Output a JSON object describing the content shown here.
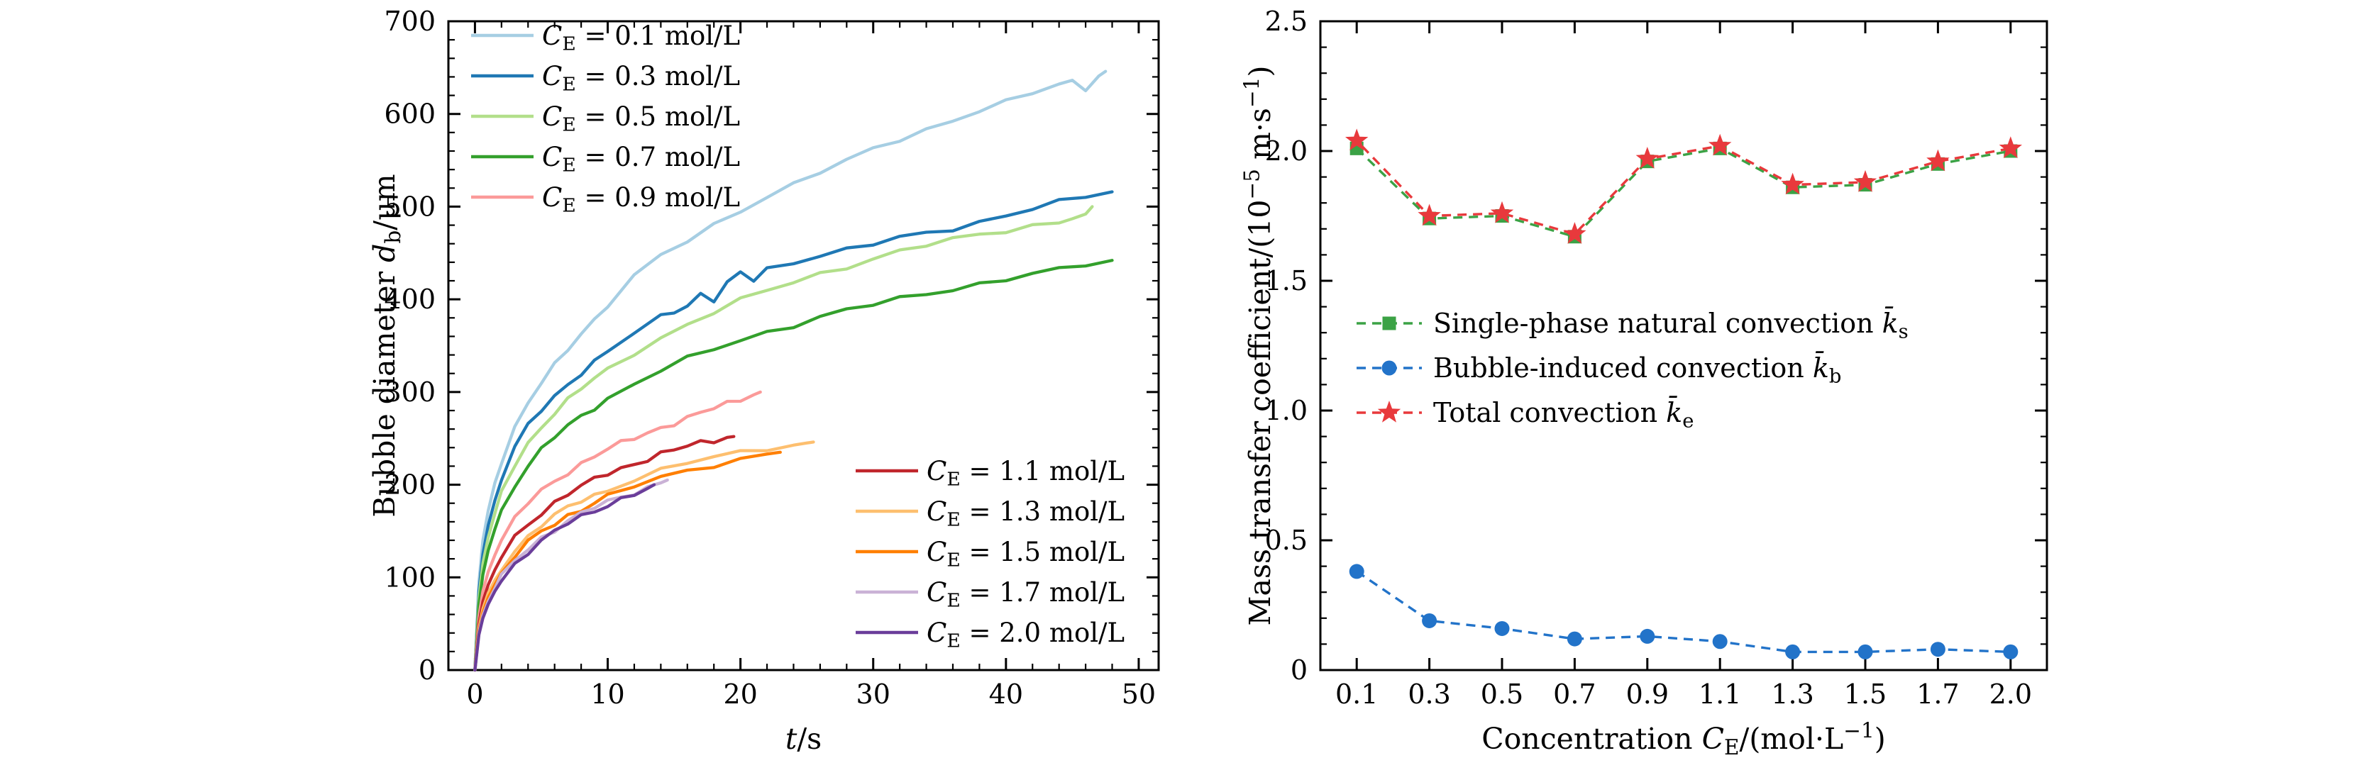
{
  "figure": {
    "background": "#ffffff",
    "text_color": "#000000"
  },
  "chart_data": [
    {
      "id": "bubble-diameter-vs-time",
      "type": "line",
      "xlabel_runs": [
        {
          "t": "t",
          "s": "i"
        },
        {
          "t": "/s"
        }
      ],
      "ylabel_runs": [
        {
          "t": "Bubble diameter "
        },
        {
          "t": "d",
          "s": "i"
        },
        {
          "t": "b",
          "s": "sub"
        },
        {
          "t": "/μm"
        }
      ],
      "xlim": [
        -2,
        51.5
      ],
      "ylim": [
        0,
        700
      ],
      "xticks": [
        0,
        10,
        20,
        30,
        40,
        50
      ],
      "yticks": [
        0,
        100,
        200,
        300,
        400,
        500,
        600,
        700
      ],
      "x_minor_step": 2,
      "y_minor_step": 20,
      "series": [
        {
          "name": "CE-0.1",
          "legend": "top",
          "color": "#a6cee3",
          "label_runs": [
            {
              "t": "C",
              "s": "i"
            },
            {
              "t": "E",
              "s": "sub"
            },
            {
              "t": " = 0.1 mol/L"
            }
          ],
          "t": [
            0,
            0.3,
            0.6,
            1,
            1.5,
            2,
            3,
            4,
            5,
            6,
            7,
            8,
            9,
            10,
            12,
            14,
            16,
            18,
            20,
            22,
            24,
            26,
            28,
            30,
            32,
            34,
            36,
            38,
            40,
            42,
            44,
            45,
            46,
            47,
            47.5
          ],
          "d": [
            0,
            95,
            140,
            172,
            202,
            226,
            262,
            289,
            309,
            328,
            346,
            363,
            379,
            395,
            425,
            447,
            462,
            479,
            496,
            512,
            525,
            538,
            549,
            561,
            572,
            583,
            594,
            605,
            613,
            622,
            631,
            634,
            628,
            641,
            646
          ]
        },
        {
          "name": "CE-0.3",
          "legend": "top",
          "color": "#1f78b4",
          "label_runs": [
            {
              "t": "C",
              "s": "i"
            },
            {
              "t": "E",
              "s": "sub"
            },
            {
              "t": " = 0.3 mol/L"
            }
          ],
          "t": [
            0,
            0.3,
            0.6,
            1,
            1.5,
            2,
            3,
            4,
            5,
            6,
            7,
            8,
            9,
            10,
            12,
            14,
            15,
            16,
            17,
            18,
            19,
            20,
            21,
            22,
            24,
            26,
            28,
            30,
            32,
            34,
            36,
            38,
            40,
            42,
            44,
            46,
            48
          ],
          "d": [
            0,
            85,
            125,
            156,
            183,
            206,
            240,
            263,
            281,
            296,
            309,
            321,
            332,
            343,
            363,
            381,
            388,
            394,
            406,
            399,
            416,
            428,
            421,
            433,
            441,
            448,
            453,
            459,
            466,
            471,
            477,
            484,
            491,
            498,
            504,
            510,
            516
          ]
        },
        {
          "name": "CE-0.5",
          "legend": "top",
          "color": "#b2df8a",
          "label_runs": [
            {
              "t": "C",
              "s": "i"
            },
            {
              "t": "E",
              "s": "sub"
            },
            {
              "t": " = 0.5 mol/L"
            }
          ],
          "t": [
            0,
            0.3,
            0.6,
            1,
            1.5,
            2,
            3,
            4,
            5,
            6,
            7,
            8,
            9,
            10,
            12,
            14,
            16,
            18,
            20,
            22,
            24,
            26,
            28,
            30,
            32,
            34,
            36,
            38,
            40,
            42,
            44,
            45,
            46,
            46.5
          ],
          "d": [
            0,
            78,
            115,
            143,
            169,
            191,
            222,
            245,
            263,
            278,
            291,
            303,
            314,
            324,
            343,
            359,
            373,
            386,
            398,
            409,
            419,
            428,
            436,
            444,
            451,
            458,
            464,
            470,
            475,
            480,
            484,
            487,
            492,
            500
          ]
        },
        {
          "name": "CE-0.7",
          "legend": "top",
          "color": "#33a02c",
          "label_runs": [
            {
              "t": "C",
              "s": "i"
            },
            {
              "t": "E",
              "s": "sub"
            },
            {
              "t": " = 0.7 mol/L"
            }
          ],
          "t": [
            0,
            0.3,
            0.6,
            1,
            1.5,
            2,
            3,
            4,
            5,
            6,
            7,
            8,
            9,
            10,
            12,
            14,
            16,
            18,
            20,
            22,
            24,
            26,
            28,
            30,
            32,
            34,
            36,
            38,
            40,
            42,
            44,
            46,
            48
          ],
          "d": [
            0,
            70,
            103,
            129,
            152,
            172,
            200,
            221,
            237,
            251,
            263,
            274,
            284,
            293,
            309,
            323,
            335,
            346,
            356,
            365,
            373,
            381,
            388,
            394,
            400,
            406,
            412,
            417,
            422,
            427,
            431,
            436,
            442
          ]
        },
        {
          "name": "CE-0.9",
          "legend": "top",
          "color": "#fb9a99",
          "label_runs": [
            {
              "t": "C",
              "s": "i"
            },
            {
              "t": "E",
              "s": "sub"
            },
            {
              "t": " = 0.9 mol/L"
            }
          ],
          "t": [
            0,
            0.3,
            0.6,
            1,
            1.5,
            2,
            3,
            4,
            5,
            6,
            7,
            8,
            9,
            10,
            11,
            12,
            13,
            14,
            15,
            16,
            17,
            18,
            19,
            20,
            21,
            21.5
          ],
          "d": [
            0,
            58,
            85,
            106,
            124,
            140,
            163,
            180,
            193,
            204,
            214,
            223,
            231,
            238,
            244,
            250,
            256,
            262,
            267,
            272,
            277,
            282,
            287,
            292,
            297,
            300
          ]
        },
        {
          "name": "CE-1.1",
          "legend": "bottom",
          "color": "#c0262c",
          "label_runs": [
            {
              "t": "C",
              "s": "i"
            },
            {
              "t": "E",
              "s": "sub"
            },
            {
              "t": " = 1.1 mol/L"
            }
          ],
          "t": [
            0,
            0.3,
            0.6,
            1,
            1.5,
            2,
            3,
            4,
            5,
            6,
            7,
            8,
            9,
            10,
            11,
            12,
            13,
            14,
            15,
            16,
            17,
            18,
            19,
            19.5
          ],
          "d": [
            0,
            50,
            74,
            92,
            108,
            122,
            143,
            158,
            170,
            181,
            190,
            198,
            205,
            212,
            218,
            223,
            228,
            233,
            237,
            241,
            245,
            248,
            251,
            252
          ]
        },
        {
          "name": "CE-1.3",
          "legend": "bottom",
          "color": "#fdbf6f",
          "label_runs": [
            {
              "t": "C",
              "s": "i"
            },
            {
              "t": "E",
              "s": "sub"
            },
            {
              "t": " = 1.3 mol/L"
            }
          ],
          "t": [
            0,
            0.3,
            0.6,
            1,
            1.5,
            2,
            3,
            4,
            5,
            6,
            7,
            8,
            9,
            10,
            12,
            14,
            16,
            18,
            20,
            22,
            24,
            25,
            25.5
          ],
          "d": [
            0,
            45,
            66,
            83,
            97,
            110,
            130,
            144,
            156,
            166,
            175,
            183,
            189,
            195,
            206,
            215,
            223,
            229,
            235,
            240,
            243,
            245,
            246
          ]
        },
        {
          "name": "CE-1.5",
          "legend": "bottom",
          "color": "#ff7f00",
          "label_runs": [
            {
              "t": "C",
              "s": "i"
            },
            {
              "t": "E",
              "s": "sub"
            },
            {
              "t": " = 1.5 mol/L"
            }
          ],
          "t": [
            0,
            0.3,
            0.6,
            1,
            1.5,
            2,
            3,
            4,
            5,
            6,
            7,
            8,
            9,
            10,
            12,
            14,
            16,
            18,
            20,
            22,
            23
          ],
          "d": [
            0,
            42,
            62,
            78,
            92,
            104,
            123,
            137,
            149,
            158,
            167,
            174,
            181,
            187,
            198,
            207,
            215,
            222,
            228,
            233,
            235
          ]
        },
        {
          "name": "CE-1.7",
          "legend": "bottom",
          "color": "#cab2d6",
          "label_runs": [
            {
              "t": "C",
              "s": "i"
            },
            {
              "t": "E",
              "s": "sub"
            },
            {
              "t": " = 1.7 mol/L"
            }
          ],
          "t": [
            0,
            0.3,
            0.6,
            1,
            1.5,
            2,
            3,
            4,
            5,
            6,
            7,
            8,
            9,
            10,
            11,
            12,
            13,
            14,
            14.5
          ],
          "d": [
            0,
            40,
            59,
            74,
            88,
            100,
            118,
            131,
            143,
            152,
            161,
            168,
            175,
            181,
            187,
            192,
            197,
            202,
            205
          ]
        },
        {
          "name": "CE-2.0",
          "legend": "bottom",
          "color": "#6a3d9a",
          "label_runs": [
            {
              "t": "C",
              "s": "i"
            },
            {
              "t": "E",
              "s": "sub"
            },
            {
              "t": " = 2.0 mol/L"
            }
          ],
          "t": [
            0,
            0.3,
            0.6,
            1,
            1.5,
            2,
            3,
            4,
            5,
            6,
            7,
            8,
            9,
            10,
            11,
            12,
            13,
            13.5
          ],
          "d": [
            0,
            38,
            56,
            71,
            85,
            97,
            115,
            128,
            139,
            149,
            158,
            165,
            172,
            179,
            185,
            190,
            196,
            200
          ]
        }
      ]
    },
    {
      "id": "mass-transfer-coefficient-vs-concentration",
      "type": "line",
      "xlabel_runs": [
        {
          "t": "Concentration "
        },
        {
          "t": "C",
          "s": "i"
        },
        {
          "t": "E",
          "s": "sub"
        },
        {
          "t": "/(mol·L"
        },
        {
          "t": "−1",
          "s": "sup"
        },
        {
          "t": ")"
        }
      ],
      "ylabel_runs": [
        {
          "t": "Mass transfer coefficient/(10"
        },
        {
          "t": "−5",
          "s": "sup"
        },
        {
          "t": " m·s"
        },
        {
          "t": "−1",
          "s": "sup"
        },
        {
          "t": ")"
        }
      ],
      "categories": [
        "0.1",
        "0.3",
        "0.5",
        "0.7",
        "0.9",
        "1.1",
        "1.3",
        "1.5",
        "1.7",
        "2.0"
      ],
      "ylim": [
        0,
        2.5
      ],
      "yticks": [
        {
          "v": 0,
          "l": "0"
        },
        {
          "v": 0.5,
          "l": "0.5"
        },
        {
          "v": 1.0,
          "l": "1.0"
        },
        {
          "v": 1.5,
          "l": "1.5"
        },
        {
          "v": 2.0,
          "l": "2.0"
        },
        {
          "v": 2.5,
          "l": "2.5"
        }
      ],
      "y_minor_step": 0.1,
      "series": [
        {
          "name": "single-phase-natural-convection",
          "marker": "square",
          "color": "#3ba245",
          "label_runs": [
            {
              "t": "Single-phase natural convection "
            },
            {
              "t": "k̄",
              "s": "i"
            },
            {
              "t": "s",
              "s": "sub"
            }
          ],
          "values": [
            2.01,
            1.74,
            1.75,
            1.67,
            1.96,
            2.01,
            1.86,
            1.87,
            1.95,
            2.0
          ]
        },
        {
          "name": "bubble-induced-convection",
          "marker": "circle",
          "color": "#2273c9",
          "label_runs": [
            {
              "t": "Bubble-induced convection "
            },
            {
              "t": "k̄",
              "s": "i"
            },
            {
              "t": "b",
              "s": "sub"
            }
          ],
          "values": [
            0.38,
            0.19,
            0.16,
            0.12,
            0.13,
            0.11,
            0.07,
            0.07,
            0.08,
            0.07
          ]
        },
        {
          "name": "total-convection",
          "marker": "star",
          "color": "#e8393c",
          "label_runs": [
            {
              "t": "Total convection "
            },
            {
              "t": "k̄",
              "s": "i"
            },
            {
              "t": "e",
              "s": "sub"
            }
          ],
          "values": [
            2.04,
            1.75,
            1.76,
            1.68,
            1.97,
            2.02,
            1.87,
            1.88,
            1.96,
            2.01
          ]
        }
      ]
    }
  ]
}
